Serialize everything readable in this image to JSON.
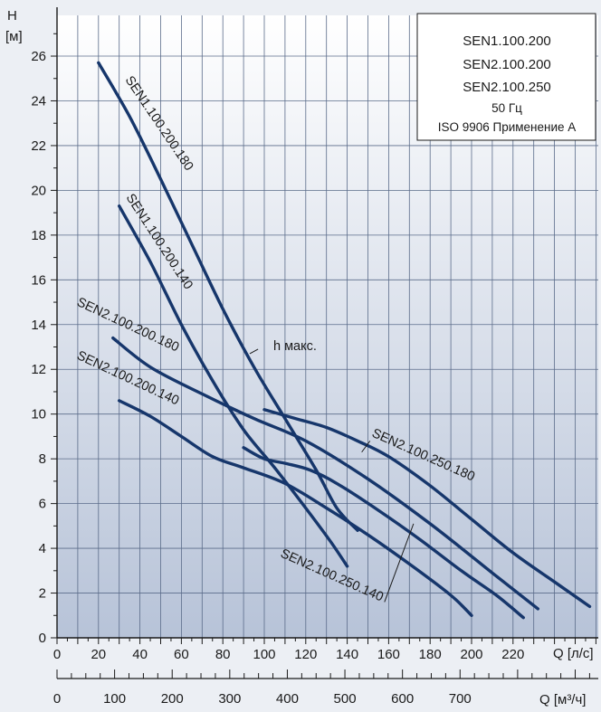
{
  "chart_data": {
    "type": "line",
    "ylabel_symbol": "H",
    "ylabel_unit": "[м]",
    "xlabel_ls": "Q [л/с]",
    "xlabel_m3h": "Q [м³/ч]",
    "xlim": [
      0,
      260
    ],
    "ylim": [
      0,
      27
    ],
    "x_ticks": [
      0,
      20,
      40,
      60,
      80,
      100,
      120,
      140,
      160,
      180,
      200,
      220
    ],
    "y_ticks": [
      0,
      2,
      4,
      6,
      8,
      10,
      12,
      14,
      16,
      18,
      20,
      22,
      24,
      26
    ],
    "x2_ticks": [
      0,
      100,
      200,
      300,
      400,
      500,
      600,
      700
    ],
    "grid": true,
    "legend": {
      "position": "top-right",
      "lines": [
        "SEN1.100.200",
        "SEN2.100.200",
        "SEN2.100.250",
        "50 Гц",
        "ISO 9906 Применение А"
      ]
    },
    "hmax_label": "h макс.",
    "series": [
      {
        "name": "SEN1.100.200.180",
        "x": [
          20,
          35,
          50,
          65,
          80,
          95,
          110,
          125,
          135,
          145
        ],
        "y": [
          25.7,
          23.3,
          20.5,
          17.6,
          14.7,
          12.1,
          9.8,
          7.5,
          5.8,
          4.8
        ]
      },
      {
        "name": "SEN1.100.200.140",
        "x": [
          30,
          45,
          60,
          75,
          90,
          105,
          120,
          132,
          140
        ],
        "y": [
          19.3,
          16.8,
          14.0,
          11.5,
          9.3,
          7.6,
          5.8,
          4.3,
          3.2
        ]
      },
      {
        "name": "SEN2.100.200.180",
        "x": [
          27,
          45,
          70,
          95,
          120,
          150,
          180,
          210,
          232
        ],
        "y": [
          13.4,
          12.1,
          10.9,
          9.8,
          8.8,
          7.1,
          5.1,
          2.9,
          1.3
        ]
      },
      {
        "name": "SEN2.100.200.140",
        "x": [
          30,
          45,
          60,
          75,
          90,
          110,
          130,
          150,
          170,
          190,
          200
        ],
        "y": [
          10.6,
          9.9,
          9.0,
          8.1,
          7.6,
          6.9,
          5.8,
          4.6,
          3.3,
          1.9,
          1.0
        ]
      },
      {
        "name": "SEN2.100.250.180",
        "x": [
          100,
          115,
          130,
          145,
          160,
          180,
          200,
          220,
          240,
          257
        ],
        "y": [
          10.2,
          9.8,
          9.4,
          8.8,
          8.1,
          6.8,
          5.3,
          3.8,
          2.5,
          1.4
        ]
      },
      {
        "name": "SEN2.100.250.140",
        "x": [
          90,
          100,
          110,
          122,
          135,
          155,
          175,
          195,
          212,
          225
        ],
        "y": [
          8.5,
          8.0,
          7.8,
          7.5,
          6.9,
          5.7,
          4.4,
          3.0,
          1.9,
          0.9
        ]
      }
    ]
  }
}
